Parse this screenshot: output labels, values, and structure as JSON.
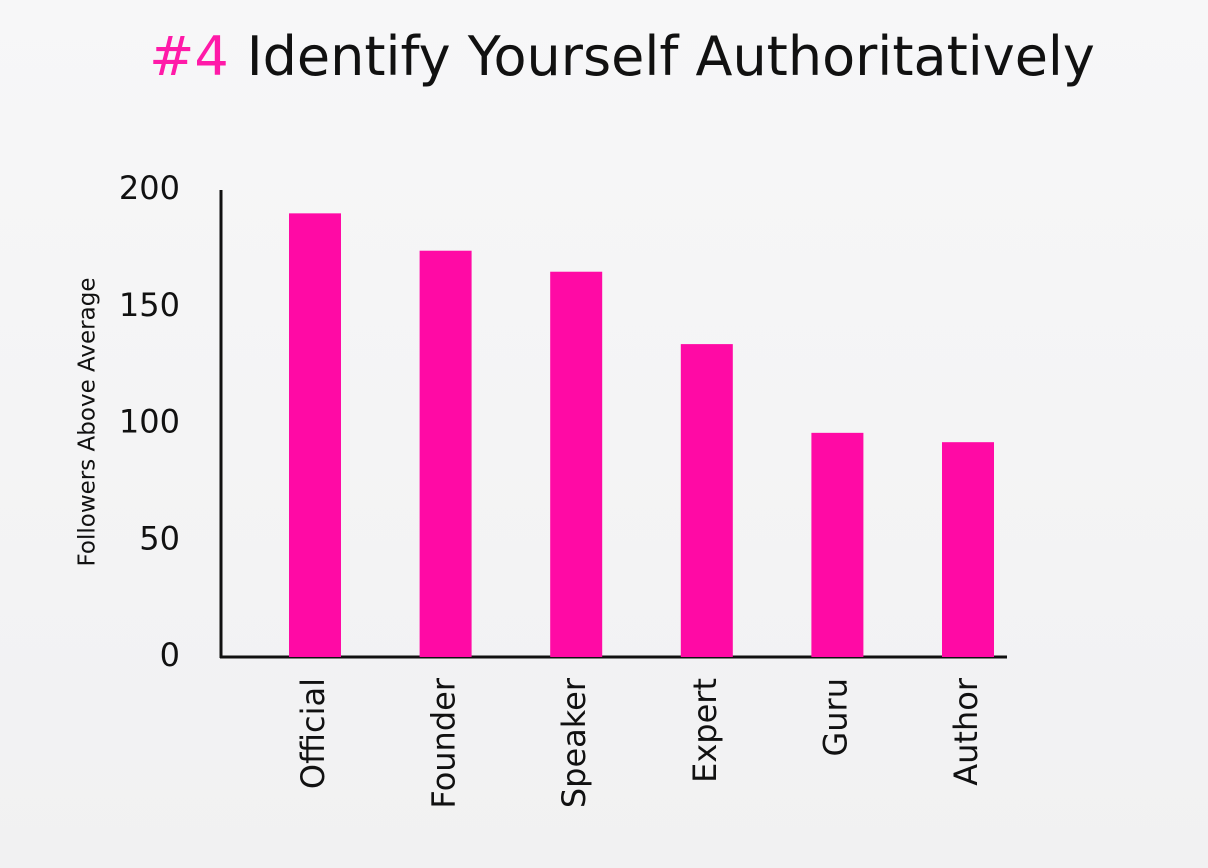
{
  "chart_data": {
    "type": "bar",
    "title_highlight": "#4",
    "title": "Identify Yourself Authoritatively",
    "y_label": "Followers Above Average",
    "categories": [
      "Official",
      "Founder",
      "Speaker",
      "Expert",
      "Guru",
      "Author"
    ],
    "values": [
      190,
      174,
      165,
      134,
      96,
      92
    ],
    "color": "#ff0aa5",
    "highlight_color": "#ff1aa8",
    "ylim": [
      0,
      200
    ],
    "yticks": [
      0,
      50,
      100,
      150,
      200
    ],
    "grid": false
  }
}
